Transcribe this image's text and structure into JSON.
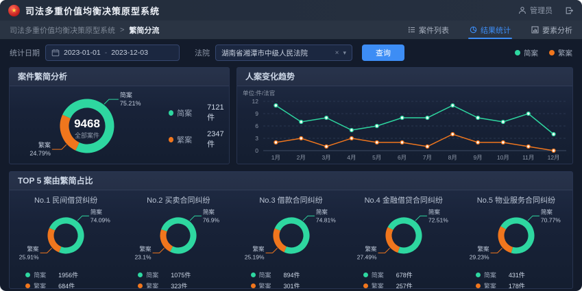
{
  "app": {
    "title": "司法多重价值均衡决策原型系统",
    "user_label": "管理员"
  },
  "breadcrumb": {
    "root": "司法多重价值均衡决策原型系统",
    "separator": ">",
    "current": "繁简分流"
  },
  "tabs": [
    {
      "label": "案件列表",
      "active": false
    },
    {
      "label": "结果统计",
      "active": true
    },
    {
      "label": "要素分析",
      "active": false
    }
  ],
  "filters": {
    "date_label": "统计日期",
    "date_start": "2023-01-01",
    "date_separator": "-",
    "date_end": "2023-12-03",
    "court_label": "法院",
    "court_value": "湖南省湘潭市中级人民法院",
    "clear_icon": "×",
    "chevron_icon": "▾",
    "query_label": "查询"
  },
  "colors": {
    "green": "#2ed7a0",
    "orange": "#f0761d",
    "blue": "#3d8df5"
  },
  "trend_legend": [
    {
      "name": "简案",
      "color": "#2ed7a0"
    },
    {
      "name": "繁案",
      "color": "#f0761d"
    }
  ],
  "chart_data": [
    {
      "type": "pie",
      "title": "案件繁简分析",
      "unit": "件",
      "center_value": "9468",
      "center_label": "全部案件",
      "slices": [
        {
          "name": "简案",
          "value": 7121,
          "pct": "75.21%",
          "color": "#2ed7a0"
        },
        {
          "name": "繁案",
          "value": 2347,
          "pct": "24.79%",
          "color": "#f0761d"
        }
      ]
    },
    {
      "type": "line",
      "title": "人案变化趋势",
      "ylabel": "单位:件/法官",
      "ylim": [
        0,
        12
      ],
      "yticks": [
        0,
        3,
        6,
        9,
        12
      ],
      "grid": true,
      "legend_position": "top-right",
      "x": [
        "1月",
        "2月",
        "3月",
        "4月",
        "5月",
        "6月",
        "7月",
        "8月",
        "9月",
        "10月",
        "11月",
        "12月"
      ],
      "series": [
        {
          "name": "简案",
          "color": "#2ed7a0",
          "values": [
            11,
            7,
            8,
            5,
            6,
            8,
            8,
            11,
            8,
            7,
            9,
            4
          ]
        },
        {
          "name": "繁案",
          "color": "#f0761d",
          "values": [
            2,
            3,
            1,
            3,
            2,
            2,
            1,
            4,
            2,
            2,
            1,
            0
          ]
        }
      ]
    },
    {
      "type": "pie",
      "title": "TOP 5 案由繁简占比",
      "unit": "件",
      "charts": [
        {
          "title": "No.1 民间借贷纠纷",
          "slices": [
            {
              "name": "简案",
              "value": 1956,
              "pct": "74.09%",
              "color": "#2ed7a0"
            },
            {
              "name": "繁案",
              "value": 684,
              "pct": "25.91%",
              "color": "#f0761d"
            }
          ]
        },
        {
          "title": "No.2 买卖合同纠纷",
          "slices": [
            {
              "name": "简案",
              "value": 1075,
              "pct": "76.9%",
              "color": "#2ed7a0"
            },
            {
              "name": "繁案",
              "value": 323,
              "pct": "23.1%",
              "color": "#f0761d"
            }
          ]
        },
        {
          "title": "No.3 借款合同纠纷",
          "slices": [
            {
              "name": "简案",
              "value": 894,
              "pct": "74.81%",
              "color": "#2ed7a0"
            },
            {
              "name": "繁案",
              "value": 301,
              "pct": "25.19%",
              "color": "#f0761d"
            }
          ]
        },
        {
          "title": "No.4 金融借贷合同纠纷",
          "slices": [
            {
              "name": "简案",
              "value": 678,
              "pct": "72.51%",
              "color": "#2ed7a0"
            },
            {
              "name": "繁案",
              "value": 257,
              "pct": "27.49%",
              "color": "#f0761d"
            }
          ]
        },
        {
          "title": "No.5 物业服务合同纠纷",
          "slices": [
            {
              "name": "简案",
              "value": 431,
              "pct": "70.77%",
              "color": "#2ed7a0"
            },
            {
              "name": "繁案",
              "value": 178,
              "pct": "29.23%",
              "color": "#f0761d"
            }
          ]
        }
      ]
    }
  ]
}
